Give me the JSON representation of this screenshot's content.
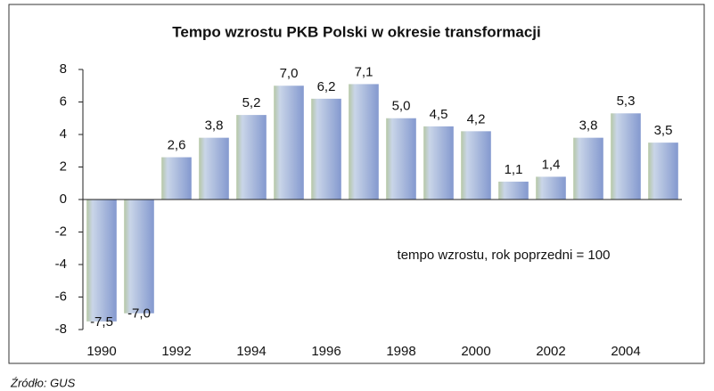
{
  "chart_data": {
    "type": "bar",
    "title": "Tempo wzrostu PKB Polski w okresie transformacji",
    "categories": [
      "1990",
      null,
      "1992",
      null,
      "1994",
      null,
      "1996",
      null,
      "1998",
      null,
      "2000",
      null,
      "2002",
      null,
      "2004",
      null
    ],
    "values": [
      -7.5,
      -7.0,
      2.6,
      3.8,
      5.2,
      7.0,
      6.2,
      7.1,
      5.0,
      4.5,
      4.2,
      1.1,
      1.4,
      3.8,
      5.3,
      3.5
    ],
    "value_labels": [
      "-7,5",
      "-7,0",
      "2,6",
      "3,8",
      "5,2",
      "7,0",
      "6,2",
      "7,1",
      "5,0",
      "4,5",
      "4,2",
      "1,1",
      "1,4",
      "3,8",
      "5,3",
      "3,5"
    ],
    "color": "#97a9d9",
    "ylim": [
      -8,
      8
    ],
    "yticks": [
      -8,
      -6,
      -4,
      -2,
      0,
      2,
      4,
      6,
      8
    ],
    "grid": false,
    "annotation": "tempo wzrostu, rok poprzedni =  100",
    "source": "Źródło: GUS"
  }
}
